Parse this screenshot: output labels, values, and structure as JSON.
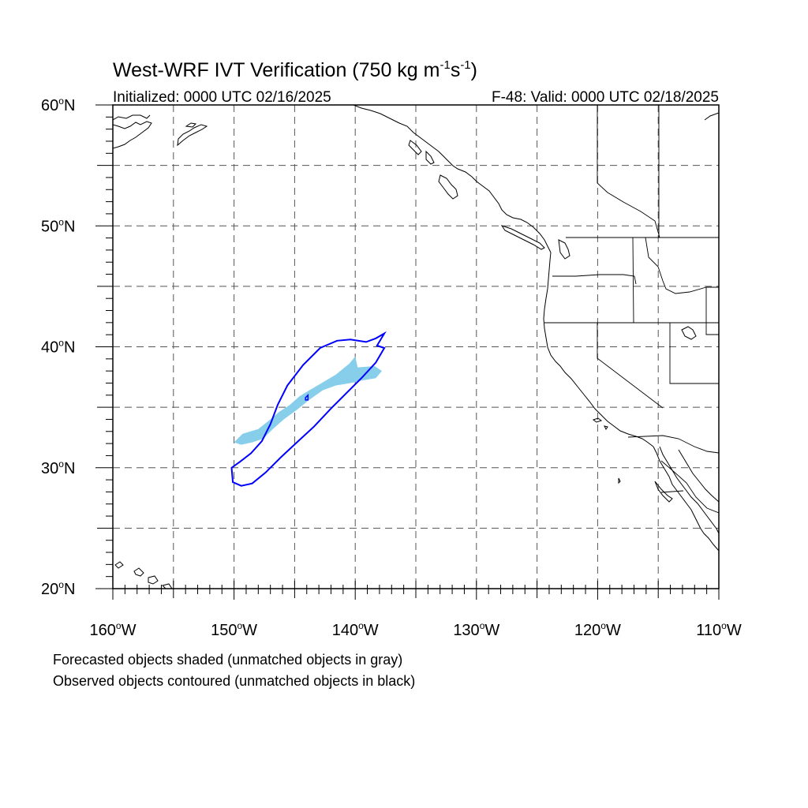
{
  "title": {
    "prefix": "West-WRF IVT Verification (750 kg m",
    "sup1": "-1",
    "mid": "s",
    "sup2": "-1",
    "suffix": ")"
  },
  "subtitle_left": "Initialized: 0000 UTC 02/16/2025",
  "subtitle_right": "F-48: Valid: 0000 UTC 02/18/2025",
  "lat_labels": [
    "60",
    "50",
    "40",
    "30",
    "20"
  ],
  "lat_suffix": "N",
  "lon_labels": [
    "160",
    "150",
    "140",
    "130",
    "120",
    "110"
  ],
  "lon_suffix": "W",
  "footer": [
    "Forecasted objects shaded (unmatched objects in gray)",
    "Observed objects contoured (unmatched objects in black)"
  ],
  "colors": {
    "forecast_fill": "#87ceeb",
    "observed_contour": "#0000ff"
  },
  "map_extent": {
    "lon": [
      -160,
      -110
    ],
    "lat": [
      20,
      60
    ]
  },
  "forecast_object": [
    [
      -150.0,
      32.1
    ],
    [
      -149.3,
      32.8
    ],
    [
      -148.0,
      33.2
    ],
    [
      -147.0,
      34.0
    ],
    [
      -146.3,
      34.6
    ],
    [
      -145.4,
      35.2
    ],
    [
      -144.6,
      35.9
    ],
    [
      -143.8,
      36.4
    ],
    [
      -142.6,
      37.1
    ],
    [
      -141.6,
      37.7
    ],
    [
      -140.5,
      38.6
    ],
    [
      -140.0,
      39.2
    ],
    [
      -139.8,
      38.3
    ],
    [
      -138.4,
      38.4
    ],
    [
      -137.8,
      38.0
    ],
    [
      -138.3,
      37.4
    ],
    [
      -139.5,
      37.2
    ],
    [
      -140.4,
      37.0
    ],
    [
      -141.6,
      36.8
    ],
    [
      -142.7,
      36.4
    ],
    [
      -143.8,
      35.6
    ],
    [
      -144.8,
      34.8
    ],
    [
      -145.9,
      34.0
    ],
    [
      -146.8,
      33.2
    ],
    [
      -147.6,
      32.4
    ],
    [
      -148.5,
      32.1
    ],
    [
      -149.4,
      31.9
    ]
  ],
  "observed_object": [
    [
      -150.1,
      28.8
    ],
    [
      -149.4,
      28.5
    ],
    [
      -148.5,
      28.7
    ],
    [
      -147.4,
      29.6
    ],
    [
      -146.1,
      30.9
    ],
    [
      -144.7,
      32.2
    ],
    [
      -143.4,
      33.4
    ],
    [
      -142.0,
      34.9
    ],
    [
      -140.6,
      36.3
    ],
    [
      -139.4,
      37.5
    ],
    [
      -138.3,
      38.7
    ],
    [
      -137.6,
      39.9
    ],
    [
      -138.2,
      40.1
    ],
    [
      -137.6,
      41.1
    ],
    [
      -138.3,
      40.7
    ],
    [
      -139.1,
      40.4
    ],
    [
      -140.4,
      40.6
    ],
    [
      -141.5,
      40.5
    ],
    [
      -142.9,
      39.9
    ],
    [
      -144.3,
      38.5
    ],
    [
      -145.6,
      36.8
    ],
    [
      -146.4,
      35.2
    ],
    [
      -147.0,
      33.6
    ],
    [
      -147.7,
      32.2
    ],
    [
      -148.6,
      31.2
    ],
    [
      -149.5,
      30.5
    ],
    [
      -150.2,
      30.0
    ]
  ],
  "observed_small": [
    [
      -144.1,
      35.8
    ],
    [
      -143.9,
      36.0
    ],
    [
      -143.9,
      35.6
    ],
    [
      -144.1,
      35.6
    ]
  ]
}
